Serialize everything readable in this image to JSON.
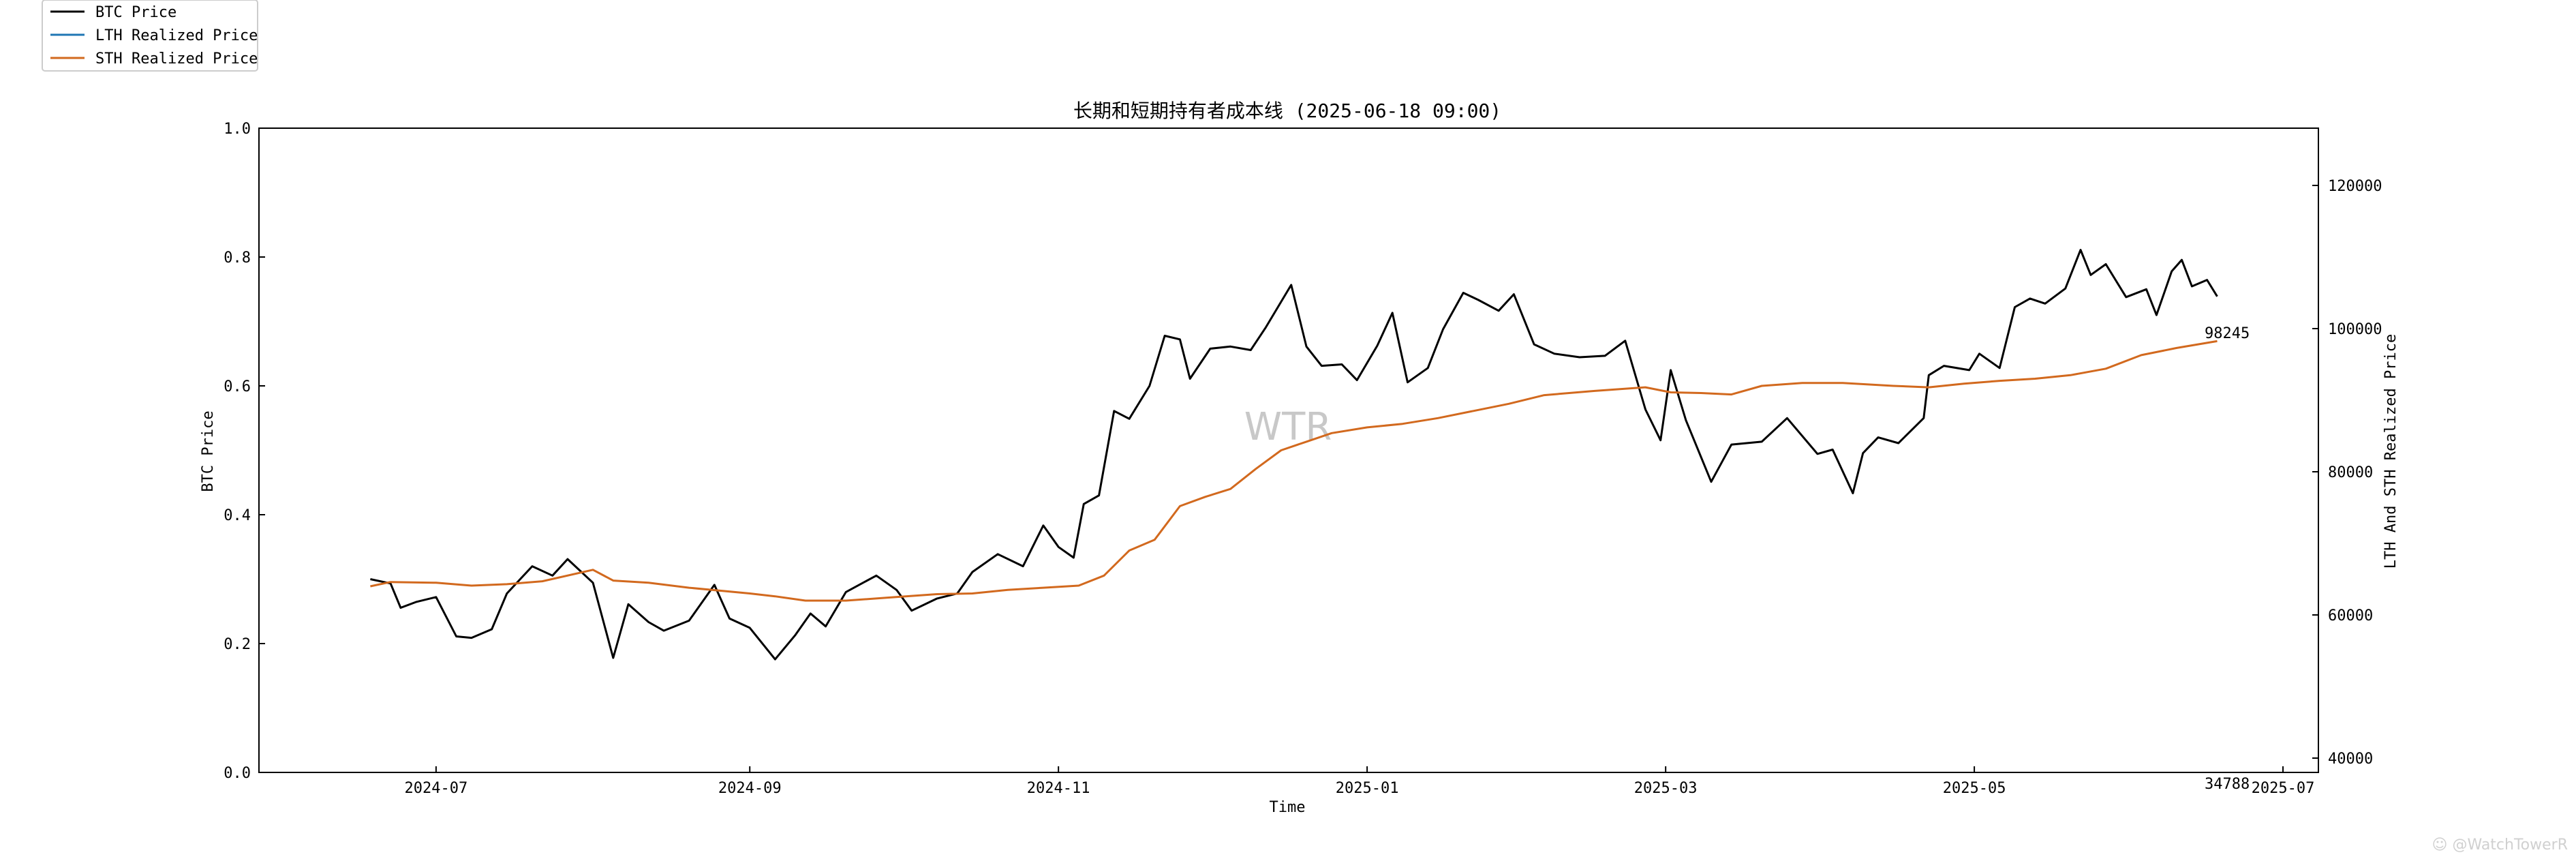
{
  "chart_data": {
    "type": "line",
    "title": "长期和短期持有者成本线 (2025-06-18 09:00)",
    "xlabel": "Time",
    "ylabel_left": "BTC Price",
    "ylabel_right": "LTH And STH Realized Price",
    "left_axis": {
      "ylim": [
        0.0,
        1.0
      ],
      "ticks": [
        "0.0",
        "0.2",
        "0.4",
        "0.6",
        "0.8",
        "1.0"
      ]
    },
    "right_axis": {
      "ylim": [
        38000,
        128000
      ],
      "ticks": [
        "40000",
        "60000",
        "80000",
        "100000",
        "120000"
      ]
    },
    "x_ticks": [
      "2024-07",
      "2024-09",
      "2024-11",
      "2025-01",
      "2025-03",
      "2025-05",
      "2025-07"
    ],
    "xlim": [
      "2024-05-27",
      "2025-07-08"
    ],
    "grid": false,
    "legend_position": "outside top-left",
    "watermark": "WTR",
    "corner_watermark": "☺ @WatchTowerR",
    "annotations": [
      {
        "text": "98245",
        "x": "2025-06-18",
        "y_right": 98245,
        "series": "STH Realized Price"
      },
      {
        "text": "34788",
        "x": "2025-06-18",
        "y_right": 34788,
        "series": "LTH Realized Price"
      }
    ],
    "series": [
      {
        "name": "BTC Price",
        "axis": "right",
        "color": "#000000",
        "points": [
          [
            "2024-06-18",
            65000
          ],
          [
            "2024-06-22",
            64400
          ],
          [
            "2024-06-24",
            61000
          ],
          [
            "2024-06-27",
            61800
          ],
          [
            "2024-07-01",
            62500
          ],
          [
            "2024-07-05",
            57000
          ],
          [
            "2024-07-08",
            56800
          ],
          [
            "2024-07-12",
            58000
          ],
          [
            "2024-07-15",
            63000
          ],
          [
            "2024-07-20",
            66800
          ],
          [
            "2024-07-24",
            65500
          ],
          [
            "2024-07-27",
            67800
          ],
          [
            "2024-08-01",
            64500
          ],
          [
            "2024-08-05",
            54000
          ],
          [
            "2024-08-08",
            61500
          ],
          [
            "2024-08-12",
            59000
          ],
          [
            "2024-08-15",
            57800
          ],
          [
            "2024-08-20",
            59200
          ],
          [
            "2024-08-25",
            64200
          ],
          [
            "2024-08-28",
            59500
          ],
          [
            "2024-09-01",
            58200
          ],
          [
            "2024-09-06",
            53800
          ],
          [
            "2024-09-10",
            57200
          ],
          [
            "2024-09-13",
            60200
          ],
          [
            "2024-09-16",
            58400
          ],
          [
            "2024-09-20",
            63200
          ],
          [
            "2024-09-26",
            65500
          ],
          [
            "2024-09-30",
            63500
          ],
          [
            "2024-10-03",
            60600
          ],
          [
            "2024-10-08",
            62300
          ],
          [
            "2024-10-12",
            63000
          ],
          [
            "2024-10-15",
            66000
          ],
          [
            "2024-10-20",
            68500
          ],
          [
            "2024-10-25",
            66800
          ],
          [
            "2024-10-29",
            72500
          ],
          [
            "2024-11-01",
            69500
          ],
          [
            "2024-11-04",
            68000
          ],
          [
            "2024-11-06",
            75500
          ],
          [
            "2024-11-09",
            76700
          ],
          [
            "2024-11-12",
            88500
          ],
          [
            "2024-11-15",
            87400
          ],
          [
            "2024-11-19",
            92000
          ],
          [
            "2024-11-22",
            99000
          ],
          [
            "2024-11-25",
            98500
          ],
          [
            "2024-11-27",
            93000
          ],
          [
            "2024-12-01",
            97200
          ],
          [
            "2024-12-05",
            97500
          ],
          [
            "2024-12-09",
            97000
          ],
          [
            "2024-12-12",
            100200
          ],
          [
            "2024-12-17",
            106100
          ],
          [
            "2024-12-20",
            97500
          ],
          [
            "2024-12-23",
            94800
          ],
          [
            "2024-12-27",
            95000
          ],
          [
            "2024-12-30",
            92800
          ],
          [
            "2025-01-03",
            97600
          ],
          [
            "2025-01-06",
            102200
          ],
          [
            "2025-01-09",
            92500
          ],
          [
            "2025-01-13",
            94500
          ],
          [
            "2025-01-16",
            99900
          ],
          [
            "2025-01-20",
            105000
          ],
          [
            "2025-01-23",
            104000
          ],
          [
            "2025-01-27",
            102500
          ],
          [
            "2025-01-30",
            104800
          ],
          [
            "2025-02-03",
            97800
          ],
          [
            "2025-02-07",
            96500
          ],
          [
            "2025-02-12",
            96000
          ],
          [
            "2025-02-17",
            96200
          ],
          [
            "2025-02-21",
            98300
          ],
          [
            "2025-02-25",
            88700
          ],
          [
            "2025-02-28",
            84400
          ],
          [
            "2025-03-02",
            94200
          ],
          [
            "2025-03-05",
            87200
          ],
          [
            "2025-03-10",
            78600
          ],
          [
            "2025-03-14",
            83800
          ],
          [
            "2025-03-20",
            84200
          ],
          [
            "2025-03-25",
            87500
          ],
          [
            "2025-03-31",
            82500
          ],
          [
            "2025-04-03",
            83100
          ],
          [
            "2025-04-07",
            77000
          ],
          [
            "2025-04-09",
            82600
          ],
          [
            "2025-04-12",
            84800
          ],
          [
            "2025-04-16",
            84000
          ],
          [
            "2025-04-21",
            87500
          ],
          [
            "2025-04-22",
            93500
          ],
          [
            "2025-04-25",
            94800
          ],
          [
            "2025-04-30",
            94200
          ],
          [
            "2025-05-02",
            96500
          ],
          [
            "2025-05-06",
            94500
          ],
          [
            "2025-05-09",
            103000
          ],
          [
            "2025-05-12",
            104200
          ],
          [
            "2025-05-15",
            103500
          ],
          [
            "2025-05-19",
            105600
          ],
          [
            "2025-05-22",
            111000
          ],
          [
            "2025-05-24",
            107500
          ],
          [
            "2025-05-27",
            109000
          ],
          [
            "2025-05-31",
            104400
          ],
          [
            "2025-06-04",
            105500
          ],
          [
            "2025-06-06",
            101900
          ],
          [
            "2025-06-09",
            108000
          ],
          [
            "2025-06-11",
            109600
          ],
          [
            "2025-06-13",
            105900
          ],
          [
            "2025-06-16",
            106800
          ],
          [
            "2025-06-18",
            104500
          ]
        ]
      },
      {
        "name": "LTH Realized Price",
        "axis": "right",
        "color": "#1f77b4",
        "points": []
      },
      {
        "name": "STH Realized Price",
        "axis": "right",
        "color": "#d2691e",
        "points": [
          [
            "2024-06-18",
            64000
          ],
          [
            "2024-06-22",
            64600
          ],
          [
            "2024-07-01",
            64500
          ],
          [
            "2024-07-08",
            64100
          ],
          [
            "2024-07-15",
            64300
          ],
          [
            "2024-07-22",
            64700
          ],
          [
            "2024-08-01",
            66300
          ],
          [
            "2024-08-05",
            64800
          ],
          [
            "2024-08-12",
            64500
          ],
          [
            "2024-08-20",
            63800
          ],
          [
            "2024-09-01",
            63000
          ],
          [
            "2024-09-06",
            62600
          ],
          [
            "2024-09-12",
            62000
          ],
          [
            "2024-09-20",
            62000
          ],
          [
            "2024-09-28",
            62400
          ],
          [
            "2024-10-08",
            62900
          ],
          [
            "2024-10-15",
            63000
          ],
          [
            "2024-10-22",
            63500
          ],
          [
            "2024-10-29",
            63800
          ],
          [
            "2024-11-05",
            64100
          ],
          [
            "2024-11-10",
            65500
          ],
          [
            "2024-11-15",
            69000
          ],
          [
            "2024-11-20",
            70500
          ],
          [
            "2024-11-25",
            75200
          ],
          [
            "2024-11-30",
            76500
          ],
          [
            "2024-12-05",
            77600
          ],
          [
            "2024-12-10",
            80400
          ],
          [
            "2024-12-15",
            83000
          ],
          [
            "2024-12-20",
            84200
          ],
          [
            "2024-12-25",
            85400
          ],
          [
            "2025-01-01",
            86200
          ],
          [
            "2025-01-08",
            86700
          ],
          [
            "2025-01-15",
            87500
          ],
          [
            "2025-01-22",
            88500
          ],
          [
            "2025-01-29",
            89500
          ],
          [
            "2025-02-05",
            90700
          ],
          [
            "2025-02-15",
            91300
          ],
          [
            "2025-02-25",
            91800
          ],
          [
            "2025-03-02",
            91100
          ],
          [
            "2025-03-08",
            91000
          ],
          [
            "2025-03-14",
            90800
          ],
          [
            "2025-03-20",
            92000
          ],
          [
            "2025-03-28",
            92400
          ],
          [
            "2025-04-05",
            92400
          ],
          [
            "2025-04-15",
            92000
          ],
          [
            "2025-04-22",
            91800
          ],
          [
            "2025-04-29",
            92300
          ],
          [
            "2025-05-06",
            92700
          ],
          [
            "2025-05-13",
            93000
          ],
          [
            "2025-05-20",
            93500
          ],
          [
            "2025-05-27",
            94400
          ],
          [
            "2025-06-03",
            96300
          ],
          [
            "2025-06-10",
            97300
          ],
          [
            "2025-06-18",
            98245
          ]
        ]
      }
    ]
  }
}
